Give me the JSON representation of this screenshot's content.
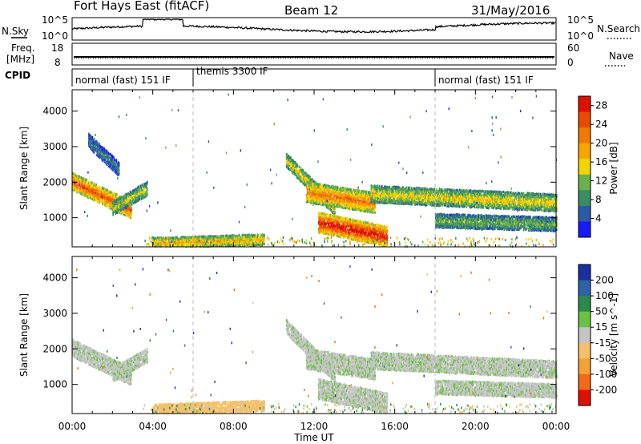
{
  "header": {
    "station": "Fort Hays East (fitACF)",
    "beam": "Beam 12",
    "date": "31/May/2016"
  },
  "summary_panels": {
    "nsky_label": "N.Sky",
    "nsky_ticks": [
      "10^5",
      "10^0"
    ],
    "nsearch_label": "N.Search",
    "freq_label": "Freq.",
    "freq_unit": "[MHz]",
    "freq_ticks": [
      "18",
      "8"
    ],
    "nave_label": "Nave",
    "nave_ticks": [
      "60",
      "0"
    ],
    "cpid_label": "CPID"
  },
  "cpid_segments": [
    {
      "label": "normal (fast) 151 IF",
      "start_hour": 0,
      "end_hour": 6
    },
    {
      "label": "themis 3300 IF",
      "start_hour": 6,
      "end_hour": 18
    },
    {
      "label": "normal (fast) 151 IF",
      "start_hour": 18,
      "end_hour": 24
    }
  ],
  "colors": {
    "power_scale": [
      "#1a1aff",
      "#2b5aa6",
      "#3a8c63",
      "#6bb04a",
      "#f2d500",
      "#f7a500",
      "#f07a00",
      "#e84a00",
      "#e01000"
    ],
    "velocity_scale": [
      "#1c2f9e",
      "#2f62a8",
      "#2e8a4a",
      "#6dc046",
      "#c4c4c4",
      "#f5c06b",
      "#f2a236",
      "#f06a1a",
      "#e01000"
    ]
  },
  "chart_data": [
    {
      "type": "heatmap",
      "panel": "power",
      "title": "",
      "xlabel": "",
      "ylabel": "Slant Range [km]",
      "xlim": [
        0,
        24
      ],
      "ylim": [
        180,
        4600
      ],
      "x_ticks": [
        0,
        4,
        8,
        12,
        16,
        20,
        24
      ],
      "y_ticks": [
        1000,
        2000,
        3000,
        4000
      ],
      "colorbar": {
        "label": "Power [dB]",
        "ticks": [
          "4",
          "8",
          "12",
          "16",
          "20",
          "24",
          "28"
        ],
        "range": [
          0,
          30
        ]
      },
      "echo_regions": [
        {
          "hour_start": 0.0,
          "hour_end": 2.9,
          "range_start": 2050,
          "range_end": 1250,
          "width_km": 220,
          "level": 22
        },
        {
          "hour_start": 2.0,
          "hour_end": 3.7,
          "range_start": 1300,
          "range_end": 1850,
          "width_km": 170,
          "level": 12
        },
        {
          "hour_start": 0.8,
          "hour_end": 2.3,
          "range_start": 3200,
          "range_end": 2400,
          "width_km": 160,
          "level": 6
        },
        {
          "hour_start": 4.0,
          "hour_end": 9.5,
          "range_start": 320,
          "range_end": 420,
          "width_km": 150,
          "level": 16
        },
        {
          "hour_start": 10.6,
          "hour_end": 13.0,
          "range_start": 2650,
          "range_end": 1300,
          "width_km": 200,
          "level": 14
        },
        {
          "hour_start": 11.6,
          "hour_end": 15.0,
          "range_start": 1750,
          "range_end": 1450,
          "width_km": 280,
          "level": 20
        },
        {
          "hour_start": 12.2,
          "hour_end": 15.6,
          "range_start": 900,
          "range_end": 500,
          "width_km": 260,
          "level": 26
        },
        {
          "hour_start": 14.8,
          "hour_end": 24.0,
          "range_start": 1700,
          "range_end": 1450,
          "width_km": 230,
          "level": 14
        },
        {
          "hour_start": 18.0,
          "hour_end": 24.0,
          "range_start": 950,
          "range_end": 850,
          "width_km": 180,
          "level": 10
        }
      ]
    },
    {
      "type": "heatmap",
      "panel": "velocity",
      "title": "",
      "xlabel": "Time UT",
      "ylabel": "Slant Range [km]",
      "xlim": [
        0,
        24
      ],
      "ylim": [
        180,
        4600
      ],
      "x_ticks": [
        0,
        4,
        8,
        12,
        16,
        20,
        24
      ],
      "x_tick_labels": [
        "00:00",
        "04:00",
        "08:00",
        "12:00",
        "16:00",
        "20:00",
        "00:00"
      ],
      "y_ticks": [
        1000,
        2000,
        3000,
        4000
      ],
      "colorbar": {
        "label": "Velocity [m s^-1]",
        "ticks": [
          "200",
          "100",
          "50",
          "15",
          "-15",
          "-50",
          "-100",
          "-200"
        ]
      },
      "echo_regions": [
        {
          "hour_start": 0.0,
          "hour_end": 2.9,
          "range_start": 2050,
          "range_end": 1250,
          "width_km": 240,
          "level": 0
        },
        {
          "hour_start": 2.0,
          "hour_end": 3.7,
          "range_start": 1300,
          "range_end": 1850,
          "width_km": 170,
          "level": 0
        },
        {
          "hour_start": 4.0,
          "hour_end": 9.5,
          "range_start": 320,
          "range_end": 430,
          "width_km": 150,
          "level": -40
        },
        {
          "hour_start": 10.6,
          "hour_end": 13.0,
          "range_start": 2650,
          "range_end": 1300,
          "width_km": 200,
          "level": 0
        },
        {
          "hour_start": 11.6,
          "hour_end": 15.0,
          "range_start": 1750,
          "range_end": 1450,
          "width_km": 280,
          "level": 0
        },
        {
          "hour_start": 12.2,
          "hour_end": 15.6,
          "range_start": 900,
          "range_end": 500,
          "width_km": 260,
          "level": 0
        },
        {
          "hour_start": 14.8,
          "hour_end": 24.0,
          "range_start": 1700,
          "range_end": 1450,
          "width_km": 230,
          "level": 0
        },
        {
          "hour_start": 18.0,
          "hour_end": 24.0,
          "range_start": 950,
          "range_end": 850,
          "width_km": 180,
          "level": 0
        }
      ]
    }
  ]
}
